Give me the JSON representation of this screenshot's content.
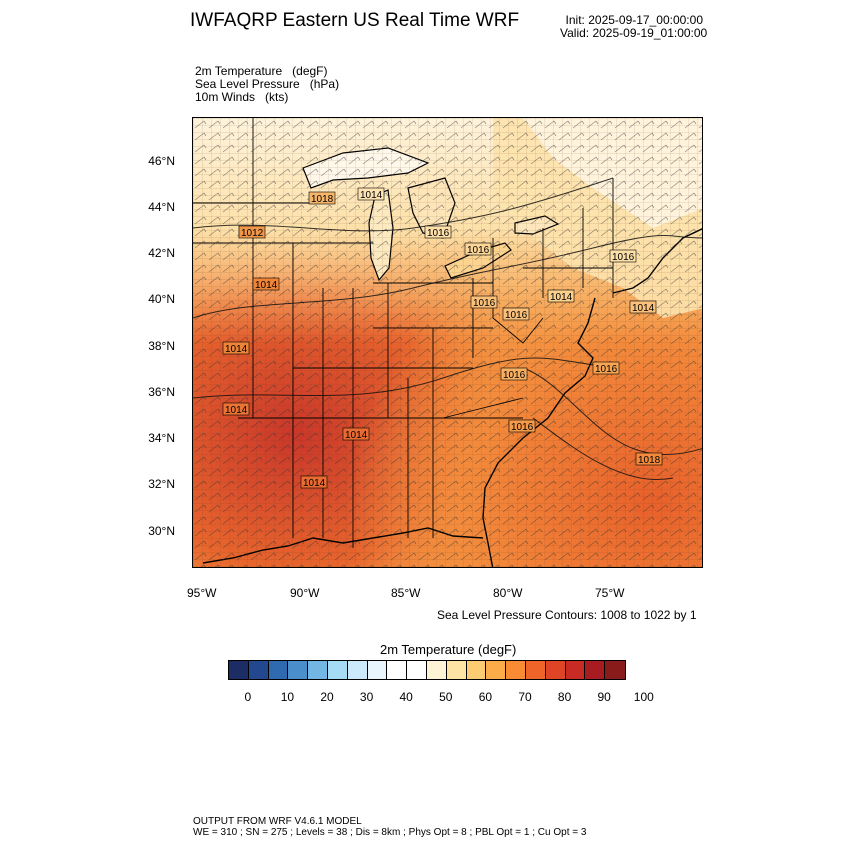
{
  "header": {
    "title": "IWFAQRP Eastern US Real Time WRF",
    "init": "Init: 2025-09-17_00:00:00",
    "valid": "Valid: 2025-09-19_01:00:00"
  },
  "variables": [
    "2m Temperature   (degF)",
    "Sea Level Pressure   (hPa)",
    "10m Winds   (kts)"
  ],
  "lat_labels": [
    "46°N",
    "44°N",
    "42°N",
    "40°N",
    "38°N",
    "36°N",
    "34°N",
    "32°N",
    "30°N"
  ],
  "lon_labels": [
    "95°W",
    "90°W",
    "85°W",
    "80°W",
    "75°W"
  ],
  "contour_note": "Sea Level Pressure Contours: 1008 to 1022 by 1",
  "pressure_labels": [
    "1018",
    "1012",
    "1014",
    "1014",
    "1014",
    "1014",
    "1014",
    "1014",
    "1016",
    "1016",
    "1016",
    "1016",
    "1016",
    "1016",
    "1016",
    "1014",
    "1014",
    "1016",
    "1018"
  ],
  "colorbar": {
    "title": "2m Temperature  (degF)",
    "colors": [
      "#1c2d66",
      "#23488f",
      "#2f6ab0",
      "#4a8fcb",
      "#73b5e3",
      "#a6dbf6",
      "#cbe9fb",
      "#e8f5fd",
      "#ffffff",
      "#ffffff",
      "#fff3d6",
      "#fee4a4",
      "#fdcb72",
      "#fcad4a",
      "#f98b35",
      "#ef6428",
      "#e04427",
      "#c72b24",
      "#a81c21",
      "#8a1b1b"
    ],
    "ticks": [
      "0",
      "10",
      "20",
      "30",
      "40",
      "50",
      "60",
      "70",
      "80",
      "90",
      "100"
    ]
  },
  "footer": {
    "line1": "OUTPUT FROM WRF V4.6.1 MODEL",
    "line2": "WE = 310 ; SN = 275 ; Levels = 38 ; Dis = 8km ; Phys Opt = 8 ; PBL Opt = 1 ; Cu Opt = 3"
  }
}
